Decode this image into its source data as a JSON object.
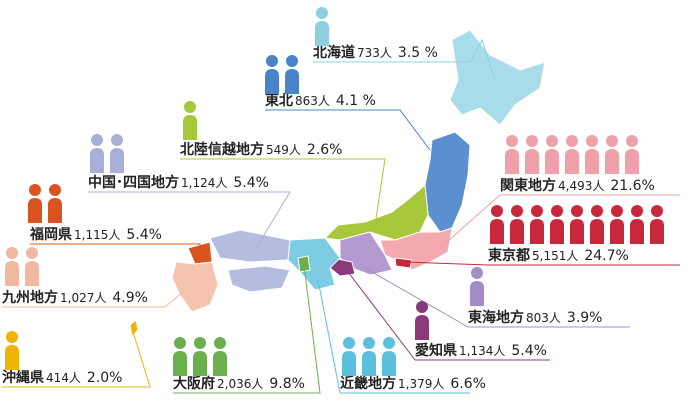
{
  "regions": [
    {
      "name": "北海道",
      "count": "733人",
      "percent": "3.5 %",
      "icons": 1,
      "color": "#8fd0e0"
    },
    {
      "name": "東北",
      "count": "863人",
      "percent": "4.1 %",
      "icons": 2,
      "color": "#4a84c8"
    },
    {
      "name": "北陸信越地方",
      "count": "549人",
      "percent": "2.6%",
      "icons": 1,
      "color": "#a8c83c"
    },
    {
      "name": "中国･四国地方",
      "count": "1,124人",
      "percent": "5.4%",
      "icons": 2,
      "color": "#a9b0d8"
    },
    {
      "name": "福岡県",
      "count": "1,115人",
      "percent": "5.4%",
      "icons": 2,
      "color": "#d9541e"
    },
    {
      "name": "九州地方",
      "count": "1,027人",
      "percent": "4.9%",
      "icons": 2,
      "color": "#f0b8a0"
    },
    {
      "name": "沖縄県",
      "count": "414人",
      "percent": "2.0%",
      "icons": 1,
      "color": "#f0b400"
    },
    {
      "name": "大阪府",
      "count": "2,036人",
      "percent": "9.8%",
      "icons": 3,
      "color": "#6ab04c"
    },
    {
      "name": "近畿地方",
      "count": "1,379人",
      "percent": "6.6%",
      "icons": 3,
      "color": "#5bc0de"
    },
    {
      "name": "愛知県",
      "count": "1,134人",
      "percent": "5.4%",
      "icons": 1,
      "color": "#8a3a7a"
    },
    {
      "name": "東海地方",
      "count": "803人",
      "percent": "3.9%",
      "icons": 1,
      "color": "#a48cc6"
    },
    {
      "name": "東京都",
      "count": "5,151人",
      "percent": "24.7%",
      "icons": 9,
      "color": "#c8283c"
    },
    {
      "name": "関東地方",
      "count": "4,493人",
      "percent": "21.6%",
      "icons": 7,
      "color": "#f0a0a8"
    }
  ]
}
